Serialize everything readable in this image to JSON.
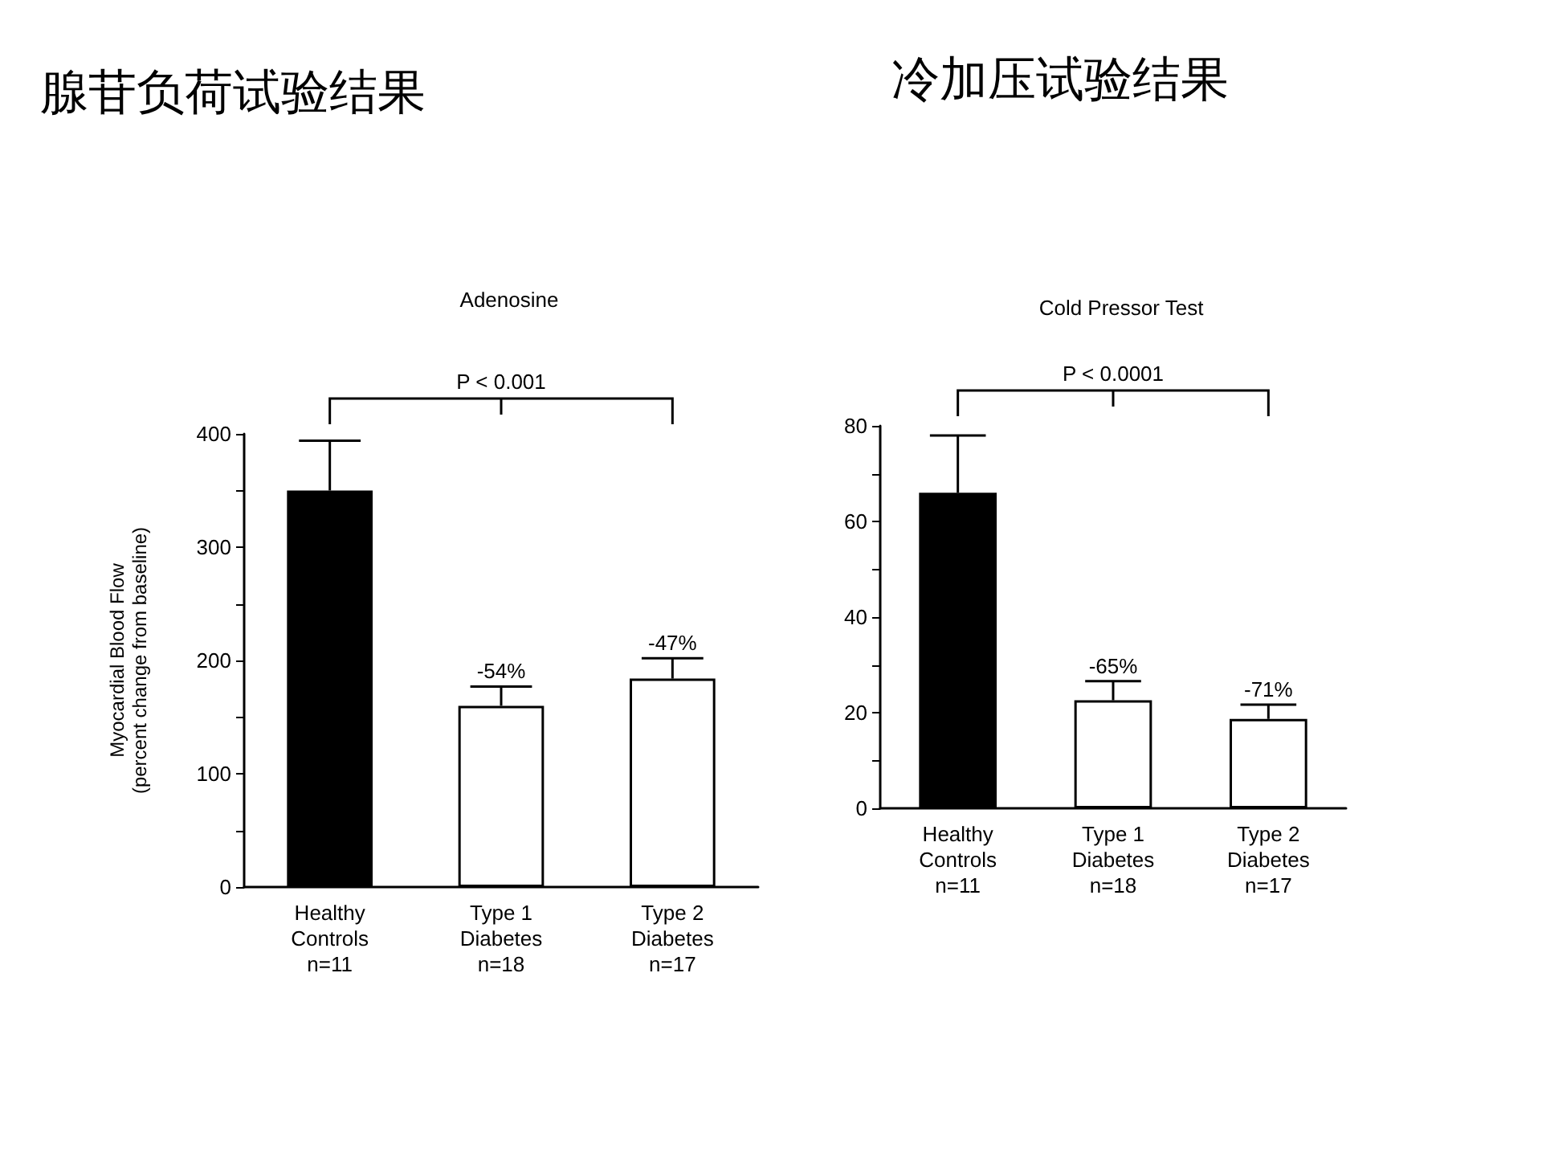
{
  "chart_data": [
    {
      "type": "bar",
      "title": "腺苷负荷试验结果",
      "subtitle": "Adenosine",
      "ylabel": "Myocardial Blood Flow\n(percent change from baseline)",
      "categories": [
        "Healthy\nControls\nn=11",
        "Type 1\nDiabetes\nn=18",
        "Type 2\nDiabetes\nn=17"
      ],
      "values": [
        350,
        160,
        184
      ],
      "errors": [
        44,
        17,
        18
      ],
      "colors": [
        "#000000",
        "#ffffff",
        "#ffffff"
      ],
      "ylim": [
        0,
        400
      ],
      "yticks": [
        0,
        {
          "value": 50,
          "label": null
        },
        100,
        {
          "value": 150,
          "label": null
        },
        200,
        {
          "value": 250,
          "label": null
        },
        300,
        {
          "value": 350,
          "label": null
        },
        400
      ],
      "annotations": [
        "P < 0.001",
        {
          "text": "-54%",
          "x": "Type 1\nDiabetes\nn=18",
          "y": 177
        },
        {
          "text": "-47%",
          "x": "Type 2\nDiabetes\nn=17",
          "y": 202
        }
      ]
    },
    {
      "type": "bar",
      "title": "冷加压试验结果",
      "subtitle": "Cold Pressor Test",
      "categories": [
        "Healthy\nControls\nn=11",
        "Type 1\nDiabetes\nn=18",
        "Type 2\nDiabetes\nn=17"
      ],
      "values": [
        66,
        22.6,
        18.7
      ],
      "errors": [
        12,
        4,
        3
      ],
      "colors": [
        "#000000",
        "#ffffff",
        "#ffffff"
      ],
      "ylim": [
        0,
        80
      ],
      "yticks": [
        0,
        {
          "value": 10,
          "label": null
        },
        20,
        {
          "value": 30,
          "label": null
        },
        40,
        {
          "value": 50,
          "label": null
        },
        60,
        {
          "value": 70,
          "label": null
        },
        80
      ],
      "annotations": [
        "P < 0.0001",
        {
          "text": "-65%",
          "x": "Type 1\nDiabetes\nn=18",
          "y": 26.6
        },
        {
          "text": "-71%",
          "x": "Type 2\nDiabetes\nn=17",
          "y": 21.7
        }
      ]
    }
  ]
}
